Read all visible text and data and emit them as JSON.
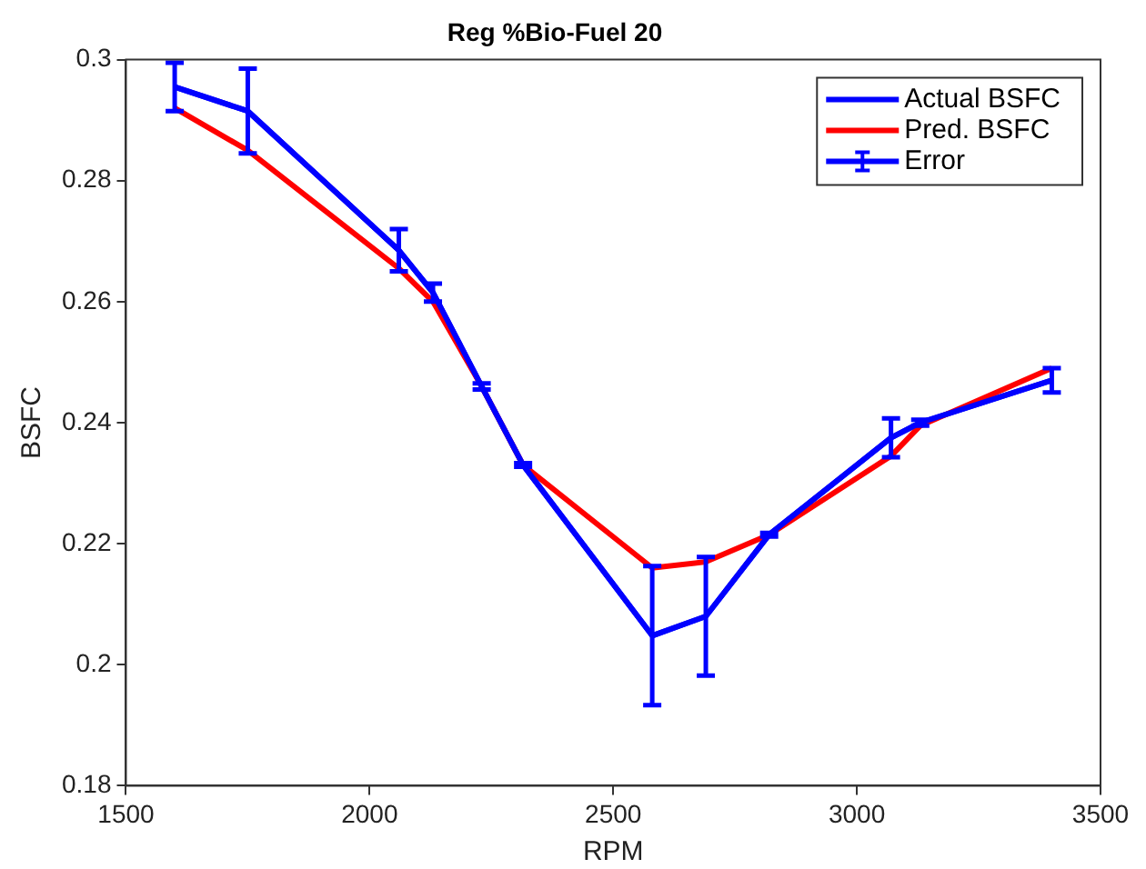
{
  "chart_data": {
    "type": "line",
    "title": "Reg %Bio-Fuel 20",
    "xlabel": "RPM",
    "ylabel": "BSFC",
    "x": [
      1600,
      1750,
      2060,
      2130,
      2230,
      2315,
      2580,
      2690,
      2820,
      3070,
      3130,
      3400
    ],
    "series": [
      {
        "name": "Actual BSFC",
        "color": "#0000ff",
        "values": [
          0.2955,
          0.2915,
          0.2685,
          0.2615,
          0.246,
          0.233,
          0.2048,
          0.208,
          0.2215,
          0.2375,
          0.24,
          0.247
        ]
      },
      {
        "name": "Pred. BSFC",
        "color": "#ff0000",
        "values": [
          0.292,
          0.285,
          0.2655,
          0.26,
          0.246,
          0.233,
          0.216,
          0.217,
          0.2215,
          0.2345,
          0.2395,
          0.249
        ]
      },
      {
        "name": "Error",
        "color": "#0000ff",
        "values": [
          0.2955,
          0.2915,
          0.2685,
          0.2615,
          0.246,
          0.233,
          0.2048,
          0.208,
          0.2215,
          0.2375,
          0.24,
          0.247
        ],
        "errors": [
          0.004,
          0.007,
          0.0035,
          0.0015,
          0.0005,
          0.0003,
          0.0115,
          0.0098,
          0.0003,
          0.0032,
          0.0005,
          0.002
        ]
      }
    ],
    "xlim": [
      1500,
      3500
    ],
    "xticks": [
      1500,
      2000,
      2500,
      3000,
      3500
    ],
    "ylim": [
      0.18,
      0.3
    ],
    "yticks": [
      0.18,
      0.2,
      0.22,
      0.24,
      0.26,
      0.28,
      0.3
    ],
    "grid": false,
    "legend": "top right",
    "marker": "none",
    "line_style": "solid"
  }
}
